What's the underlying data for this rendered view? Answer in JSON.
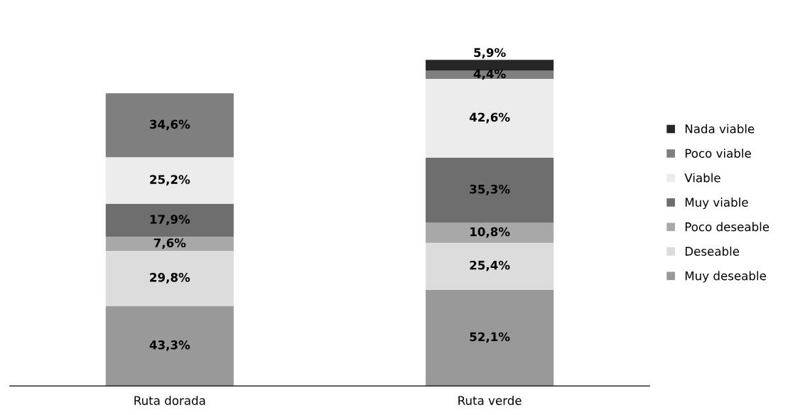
{
  "chart_data": {
    "type": "bar",
    "stacked": true,
    "tick_labels": "x",
    "grid": false,
    "legend": "right",
    "categories": [
      "Ruta dorada",
      "Ruta verde"
    ],
    "series": [
      {
        "name": "Muy deseable",
        "color": "#999999",
        "values": [
          43.3,
          52.1
        ],
        "value_labels": [
          "43,3%",
          "52,1%"
        ]
      },
      {
        "name": "Deseable",
        "color": "#dcdcdc",
        "values": [
          29.8,
          25.4
        ],
        "value_labels": [
          "29,8%",
          "25,4%"
        ]
      },
      {
        "name": "Poco deseable",
        "color": "#a8a8a8",
        "values": [
          7.6,
          10.8
        ],
        "value_labels": [
          "7,6%",
          "10,8%"
        ]
      },
      {
        "name": "Muy viable",
        "color": "#6e6e6e",
        "values": [
          17.9,
          35.3
        ],
        "value_labels": [
          "17,9%",
          "35,3%"
        ]
      },
      {
        "name": "Viable",
        "color": "#ececec",
        "values": [
          25.2,
          42.6
        ],
        "value_labels": [
          "25,2%",
          "42,6%"
        ]
      },
      {
        "name": "Poco viable",
        "color": "#7f7f7f",
        "values": [
          34.6,
          4.4
        ],
        "value_labels": [
          "34,6%",
          "4,4%"
        ]
      },
      {
        "name": "Nada viable",
        "color": "#262626",
        "values": [
          null,
          5.9
        ],
        "value_labels": [
          null,
          "5,9%"
        ]
      }
    ]
  }
}
